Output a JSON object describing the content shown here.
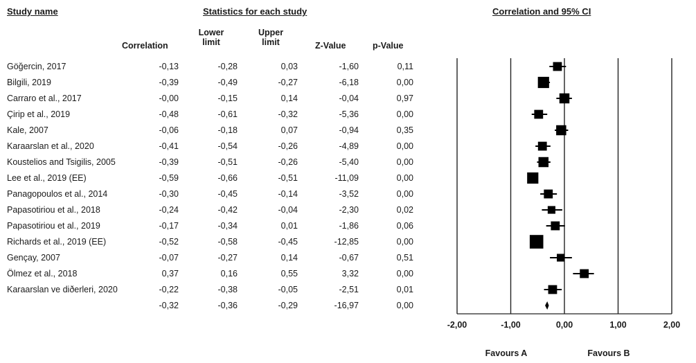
{
  "headers": {
    "study_name": "Study name",
    "statistics": "Statistics for each study",
    "plot_title": "Correlation and 95% CI"
  },
  "columns": {
    "correlation": "Correlation",
    "lower": "Lower limit",
    "upper": "Upper limit",
    "z": "Z-Value",
    "p": "p-Value"
  },
  "rows": [
    {
      "study": "Göğercin, 2017",
      "correlation": "-0,13",
      "lower": "-0,28",
      "upper": "0,03",
      "z": "-1,60",
      "p": "0,11"
    },
    {
      "study": "Bilgili, 2019",
      "correlation": "-0,39",
      "lower": "-0,49",
      "upper": "-0,27",
      "z": "-6,18",
      "p": "0,00"
    },
    {
      "study": "Carraro et al., 2017",
      "correlation": "-0,00",
      "lower": "-0,15",
      "upper": "0,14",
      "z": "-0,04",
      "p": "0,97"
    },
    {
      "study": "Çirip et al., 2019",
      "correlation": "-0,48",
      "lower": "-0,61",
      "upper": "-0,32",
      "z": "-5,36",
      "p": "0,00"
    },
    {
      "study": "Kale, 2007",
      "correlation": "-0,06",
      "lower": "-0,18",
      "upper": "0,07",
      "z": "-0,94",
      "p": "0,35"
    },
    {
      "study": "Karaarslan et al., 2020",
      "correlation": "-0,41",
      "lower": "-0,54",
      "upper": "-0,26",
      "z": "-4,89",
      "p": "0,00"
    },
    {
      "study": "Koustelios and Tsigilis, 2005",
      "correlation": "-0,39",
      "lower": "-0,51",
      "upper": "-0,26",
      "z": "-5,40",
      "p": "0,00"
    },
    {
      "study": "Lee et al., 2019 (EE)",
      "correlation": "-0,59",
      "lower": "-0,66",
      "upper": "-0,51",
      "z": "-11,09",
      "p": "0,00"
    },
    {
      "study": "Panagopoulos et al., 2014",
      "correlation": "-0,30",
      "lower": "-0,45",
      "upper": "-0,14",
      "z": "-3,52",
      "p": "0,00"
    },
    {
      "study": "Papasotiriou et al., 2018",
      "correlation": "-0,24",
      "lower": "-0,42",
      "upper": "-0,04",
      "z": "-2,30",
      "p": "0,02"
    },
    {
      "study": "Papasotiriou et al., 2019",
      "correlation": "-0,17",
      "lower": "-0,34",
      "upper": "0,01",
      "z": "-1,86",
      "p": "0,06"
    },
    {
      "study": "Richards et al., 2019 (EE)",
      "correlation": "-0,52",
      "lower": "-0,58",
      "upper": "-0,45",
      "z": "-12,85",
      "p": "0,00"
    },
    {
      "study": "Gençay, 2007",
      "correlation": "-0,07",
      "lower": "-0,27",
      "upper": "0,14",
      "z": "-0,67",
      "p": "0,51"
    },
    {
      "study": "Ölmez et al., 2018",
      "correlation": "0,37",
      "lower": "0,16",
      "upper": "0,55",
      "z": "3,32",
      "p": "0,00"
    },
    {
      "study": "Karaarslan ve diðerleri, 2020",
      "correlation": "-0,22",
      "lower": "-0,38",
      "upper": "-0,05",
      "z": "-2,51",
      "p": "0,01"
    },
    {
      "study": "",
      "correlation": "-0,32",
      "lower": "-0,36",
      "upper": "-0,29",
      "z": "-16,97",
      "p": "0,00"
    }
  ],
  "chart_data": {
    "type": "forest",
    "title": "Correlation and 95% CI",
    "xlim": [
      -2,
      2
    ],
    "ticks": [
      -2,
      -1,
      0,
      1,
      2
    ],
    "tick_labels": [
      "-2,00",
      "-1,00",
      "0,00",
      "1,00",
      "2,00"
    ],
    "favours_left": "Favours A",
    "favours_right": "Favours B",
    "color": "#000000",
    "studies": [
      {
        "study": "Göğercin, 2017",
        "r": -0.13,
        "lower": -0.28,
        "upper": 0.03,
        "weight": 2
      },
      {
        "study": "Bilgili, 2019",
        "r": -0.39,
        "lower": -0.49,
        "upper": -0.27,
        "weight": 3
      },
      {
        "study": "Carraro et al., 2017",
        "r": -0.0,
        "lower": -0.15,
        "upper": 0.14,
        "weight": 2.5
      },
      {
        "study": "Çirip et al., 2019",
        "r": -0.48,
        "lower": -0.61,
        "upper": -0.32,
        "weight": 2
      },
      {
        "study": "Kale, 2007",
        "r": -0.06,
        "lower": -0.18,
        "upper": 0.07,
        "weight": 2.5
      },
      {
        "study": "Karaarslan et al., 2020",
        "r": -0.41,
        "lower": -0.54,
        "upper": -0.26,
        "weight": 2
      },
      {
        "study": "Koustelios and Tsigilis, 2005",
        "r": -0.39,
        "lower": -0.51,
        "upper": -0.26,
        "weight": 2.5
      },
      {
        "study": "Lee et al., 2019 (EE)",
        "r": -0.59,
        "lower": -0.66,
        "upper": -0.51,
        "weight": 3
      },
      {
        "study": "Panagopoulos et al., 2014",
        "r": -0.3,
        "lower": -0.45,
        "upper": -0.14,
        "weight": 2
      },
      {
        "study": "Papasotiriou et al., 2018",
        "r": -0.24,
        "lower": -0.42,
        "upper": -0.04,
        "weight": 1.5
      },
      {
        "study": "Papasotiriou et al., 2019",
        "r": -0.17,
        "lower": -0.34,
        "upper": 0.01,
        "weight": 2
      },
      {
        "study": "Richards et al., 2019 (EE)",
        "r": -0.52,
        "lower": -0.58,
        "upper": -0.45,
        "weight": 4
      },
      {
        "study": "Gençay, 2007",
        "r": -0.07,
        "lower": -0.27,
        "upper": 0.14,
        "weight": 1.5
      },
      {
        "study": "Ölmez et al., 2018",
        "r": 0.37,
        "lower": 0.16,
        "upper": 0.55,
        "weight": 2
      },
      {
        "study": "Karaarslan ve diðerleri, 2020",
        "r": -0.22,
        "lower": -0.38,
        "upper": -0.05,
        "weight": 2
      }
    ],
    "summary": {
      "r": -0.32,
      "lower": -0.36,
      "upper": -0.29
    }
  }
}
